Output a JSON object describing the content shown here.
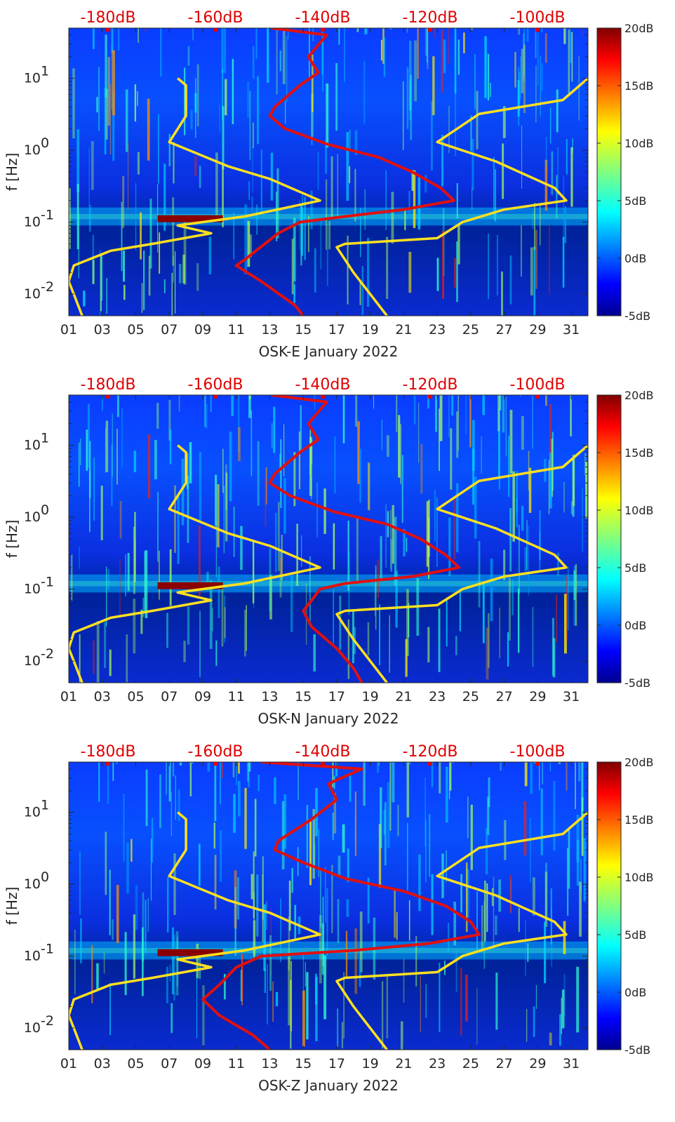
{
  "chart_data": [
    {
      "type": "heatmap",
      "station": "OSK-E",
      "xlabel": "OSK-E January 2022",
      "ylabel": "f [Hz]",
      "x_ticks": [
        "01",
        "03",
        "05",
        "07",
        "09",
        "11",
        "13",
        "15",
        "17",
        "19",
        "21",
        "23",
        "25",
        "27",
        "29",
        "31"
      ],
      "xlim": [
        1,
        32
      ],
      "y_ticks": [
        "10^-2",
        "10^-1",
        "10^0",
        "10^1"
      ],
      "ylim": [
        0.005,
        50
      ],
      "top_axis_ticks": [
        "-180dB",
        "-160dB",
        "-140dB",
        "-120dB",
        "-100dB"
      ],
      "colorbar": {
        "ticks": [
          "20dB",
          "15dB",
          "10dB",
          "5dB",
          "0dB",
          "-5dB"
        ],
        "range": [
          -5,
          20
        ],
        "colormap": "jet"
      },
      "series": [
        {
          "name": "red PSD curve",
          "color": "#e01010",
          "points": [
            [
              13.1,
              50
            ],
            [
              16.4,
              40
            ],
            [
              15.3,
              20
            ],
            [
              15.9,
              12
            ],
            [
              14.8,
              8
            ],
            [
              13.3,
              4
            ],
            [
              13.0,
              3
            ],
            [
              13.9,
              2
            ],
            [
              16.5,
              1.2
            ],
            [
              19.5,
              0.8
            ],
            [
              21.5,
              0.5
            ],
            [
              23.2,
              0.3
            ],
            [
              24.0,
              0.2
            ],
            [
              21.0,
              0.15
            ],
            [
              17.5,
              0.12
            ],
            [
              14.8,
              0.1
            ],
            [
              13.5,
              0.07
            ],
            [
              11.5,
              0.03
            ],
            [
              11.0,
              0.025
            ],
            [
              12.5,
              0.015
            ],
            [
              14.5,
              0.007
            ],
            [
              15.0,
              0.005
            ]
          ]
        },
        {
          "name": "yellow low-noise model",
          "color": "#ffe020",
          "points": [
            [
              7.5,
              10
            ],
            [
              8.0,
              8
            ],
            [
              8.0,
              3
            ],
            [
              7.0,
              1.3
            ],
            [
              10.5,
              0.6
            ],
            [
              13.0,
              0.4
            ],
            [
              16.0,
              0.2
            ],
            [
              11.5,
              0.12
            ],
            [
              7.5,
              0.09
            ],
            [
              9.5,
              0.07
            ],
            [
              6.0,
              0.05
            ],
            [
              3.5,
              0.04
            ],
            [
              1.3,
              0.025
            ],
            [
              1.0,
              0.015
            ],
            [
              1.3,
              0.01
            ],
            [
              1.8,
              0.005
            ]
          ]
        },
        {
          "name": "yellow high-noise model",
          "color": "#ffe020",
          "points": [
            [
              32.0,
              10
            ],
            [
              30.5,
              5
            ],
            [
              25.5,
              3.2
            ],
            [
              23.0,
              1.3
            ],
            [
              26.5,
              0.7
            ],
            [
              30.0,
              0.3
            ],
            [
              30.7,
              0.2
            ],
            [
              27.0,
              0.15
            ],
            [
              24.5,
              0.1
            ],
            [
              23.0,
              0.06
            ],
            [
              17.5,
              0.05
            ],
            [
              17.0,
              0.045
            ],
            [
              18.0,
              0.02
            ],
            [
              20.0,
              0.005
            ]
          ]
        }
      ]
    },
    {
      "type": "heatmap",
      "station": "OSK-N",
      "xlabel": "OSK-N January 2022",
      "ylabel": "f [Hz]",
      "x_ticks": [
        "01",
        "03",
        "05",
        "07",
        "09",
        "11",
        "13",
        "15",
        "17",
        "19",
        "21",
        "23",
        "25",
        "27",
        "29",
        "31"
      ],
      "xlim": [
        1,
        32
      ],
      "y_ticks": [
        "10^-2",
        "10^-1",
        "10^0",
        "10^1"
      ],
      "ylim": [
        0.005,
        50
      ],
      "top_axis_ticks": [
        "-180dB",
        "-160dB",
        "-140dB",
        "-120dB",
        "-100dB"
      ],
      "colorbar": {
        "ticks": [
          "20dB",
          "15dB",
          "10dB",
          "5dB",
          "0dB",
          "-5dB"
        ],
        "range": [
          -5,
          20
        ],
        "colormap": "jet"
      },
      "series": [
        {
          "name": "red PSD curve",
          "color": "#e01010",
          "points": [
            [
              13.1,
              50
            ],
            [
              16.4,
              40
            ],
            [
              15.3,
              20
            ],
            [
              15.9,
              12
            ],
            [
              14.8,
              8
            ],
            [
              13.3,
              4
            ],
            [
              13.0,
              3
            ],
            [
              14.2,
              2
            ],
            [
              16.8,
              1.2
            ],
            [
              20.0,
              0.8
            ],
            [
              22.0,
              0.5
            ],
            [
              23.5,
              0.3
            ],
            [
              24.3,
              0.2
            ],
            [
              21.5,
              0.15
            ],
            [
              17.5,
              0.12
            ],
            [
              16.0,
              0.1
            ],
            [
              15.5,
              0.07
            ],
            [
              15.0,
              0.05
            ],
            [
              15.5,
              0.03
            ],
            [
              17.0,
              0.015
            ],
            [
              18.0,
              0.008
            ],
            [
              18.5,
              0.005
            ]
          ]
        },
        {
          "name": "yellow low-noise model",
          "color": "#ffe020",
          "points": [
            [
              7.5,
              10
            ],
            [
              8.0,
              8
            ],
            [
              8.0,
              3
            ],
            [
              7.0,
              1.3
            ],
            [
              10.5,
              0.6
            ],
            [
              13.0,
              0.4
            ],
            [
              16.0,
              0.2
            ],
            [
              11.5,
              0.12
            ],
            [
              7.5,
              0.09
            ],
            [
              9.5,
              0.07
            ],
            [
              6.0,
              0.05
            ],
            [
              3.5,
              0.04
            ],
            [
              1.3,
              0.025
            ],
            [
              1.0,
              0.015
            ],
            [
              1.3,
              0.01
            ],
            [
              1.8,
              0.005
            ]
          ]
        },
        {
          "name": "yellow high-noise model",
          "color": "#ffe020",
          "points": [
            [
              32.0,
              10
            ],
            [
              30.5,
              5
            ],
            [
              25.5,
              3.2
            ],
            [
              23.0,
              1.3
            ],
            [
              26.5,
              0.7
            ],
            [
              30.0,
              0.3
            ],
            [
              30.7,
              0.2
            ],
            [
              27.0,
              0.15
            ],
            [
              24.5,
              0.1
            ],
            [
              23.0,
              0.06
            ],
            [
              17.5,
              0.05
            ],
            [
              17.0,
              0.045
            ],
            [
              18.0,
              0.02
            ],
            [
              20.0,
              0.005
            ]
          ]
        }
      ]
    },
    {
      "type": "heatmap",
      "station": "OSK-Z",
      "xlabel": "OSK-Z January 2022",
      "ylabel": "f [Hz]",
      "x_ticks": [
        "01",
        "03",
        "05",
        "07",
        "09",
        "11",
        "13",
        "15",
        "17",
        "19",
        "21",
        "23",
        "25",
        "27",
        "29",
        "31"
      ],
      "xlim": [
        1,
        32
      ],
      "y_ticks": [
        "10^-2",
        "10^-1",
        "10^0",
        "10^1"
      ],
      "ylim": [
        0.005,
        50
      ],
      "top_axis_ticks": [
        "-180dB",
        "-160dB",
        "-140dB",
        "-120dB",
        "-100dB"
      ],
      "colorbar": {
        "ticks": [
          "20dB",
          "15dB",
          "10dB",
          "5dB",
          "0dB",
          "-5dB"
        ],
        "range": [
          -5,
          20
        ],
        "colormap": "jet"
      },
      "series": [
        {
          "name": "red PSD curve",
          "color": "#e01010",
          "points": [
            [
              12.5,
              50
            ],
            [
              18.5,
              40
            ],
            [
              16.5,
              25
            ],
            [
              17.0,
              15
            ],
            [
              15.5,
              8
            ],
            [
              13.5,
              4
            ],
            [
              13.3,
              3
            ],
            [
              15.0,
              2
            ],
            [
              17.5,
              1.2
            ],
            [
              21.0,
              0.8
            ],
            [
              23.5,
              0.5
            ],
            [
              25.0,
              0.3
            ],
            [
              25.5,
              0.2
            ],
            [
              22.5,
              0.15
            ],
            [
              18.0,
              0.12
            ],
            [
              12.5,
              0.1
            ],
            [
              11.0,
              0.07
            ],
            [
              10.0,
              0.04
            ],
            [
              9.0,
              0.025
            ],
            [
              10.0,
              0.015
            ],
            [
              12.0,
              0.008
            ],
            [
              13.0,
              0.005
            ]
          ]
        },
        {
          "name": "yellow low-noise model",
          "color": "#ffe020",
          "points": [
            [
              7.5,
              10
            ],
            [
              8.0,
              8
            ],
            [
              8.0,
              3
            ],
            [
              7.0,
              1.3
            ],
            [
              10.5,
              0.6
            ],
            [
              13.0,
              0.4
            ],
            [
              16.0,
              0.2
            ],
            [
              11.5,
              0.12
            ],
            [
              7.5,
              0.09
            ],
            [
              9.5,
              0.07
            ],
            [
              6.0,
              0.05
            ],
            [
              3.5,
              0.04
            ],
            [
              1.3,
              0.025
            ],
            [
              1.0,
              0.015
            ],
            [
              1.3,
              0.01
            ],
            [
              1.8,
              0.005
            ]
          ]
        },
        {
          "name": "yellow high-noise model",
          "color": "#ffe020",
          "points": [
            [
              32.0,
              10
            ],
            [
              30.5,
              5
            ],
            [
              25.5,
              3.2
            ],
            [
              23.0,
              1.3
            ],
            [
              26.5,
              0.7
            ],
            [
              30.0,
              0.3
            ],
            [
              30.7,
              0.2
            ],
            [
              27.0,
              0.15
            ],
            [
              24.5,
              0.1
            ],
            [
              23.0,
              0.06
            ],
            [
              17.5,
              0.05
            ],
            [
              17.0,
              0.045
            ],
            [
              18.0,
              0.02
            ],
            [
              20.0,
              0.005
            ]
          ]
        }
      ]
    }
  ]
}
